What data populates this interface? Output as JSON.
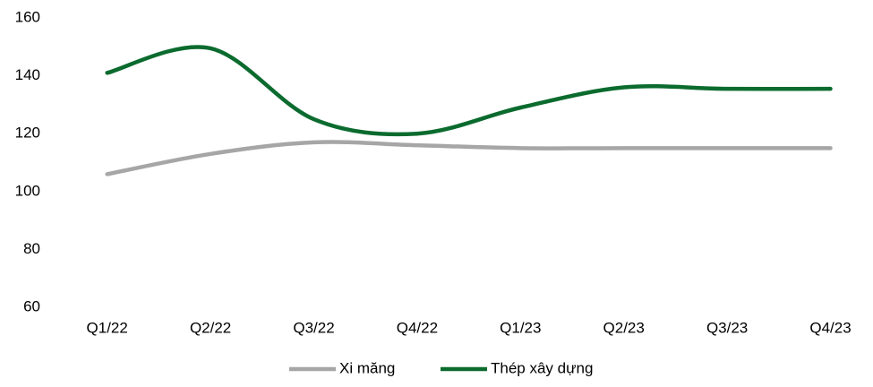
{
  "chart_data": {
    "type": "line",
    "categories": [
      "Q1/22",
      "Q2/22",
      "Q3/22",
      "Q4/22",
      "Q1/23",
      "Q2/23",
      "Q3/23",
      "Q4/23"
    ],
    "series": [
      {
        "name": "Xi măng",
        "color": "#a6a6a6",
        "values": [
          106,
          113,
          117,
          116,
          115,
          115,
          115,
          115
        ]
      },
      {
        "name": "Thép xây dựng",
        "color": "#0b6b2e",
        "values": [
          141,
          149.5,
          125,
          120,
          129,
          136,
          135.5,
          135.5
        ]
      }
    ],
    "ylim": [
      60,
      160
    ],
    "yticks": [
      60,
      80,
      100,
      120,
      140,
      160
    ],
    "grid": false,
    "legend": "bottom"
  }
}
